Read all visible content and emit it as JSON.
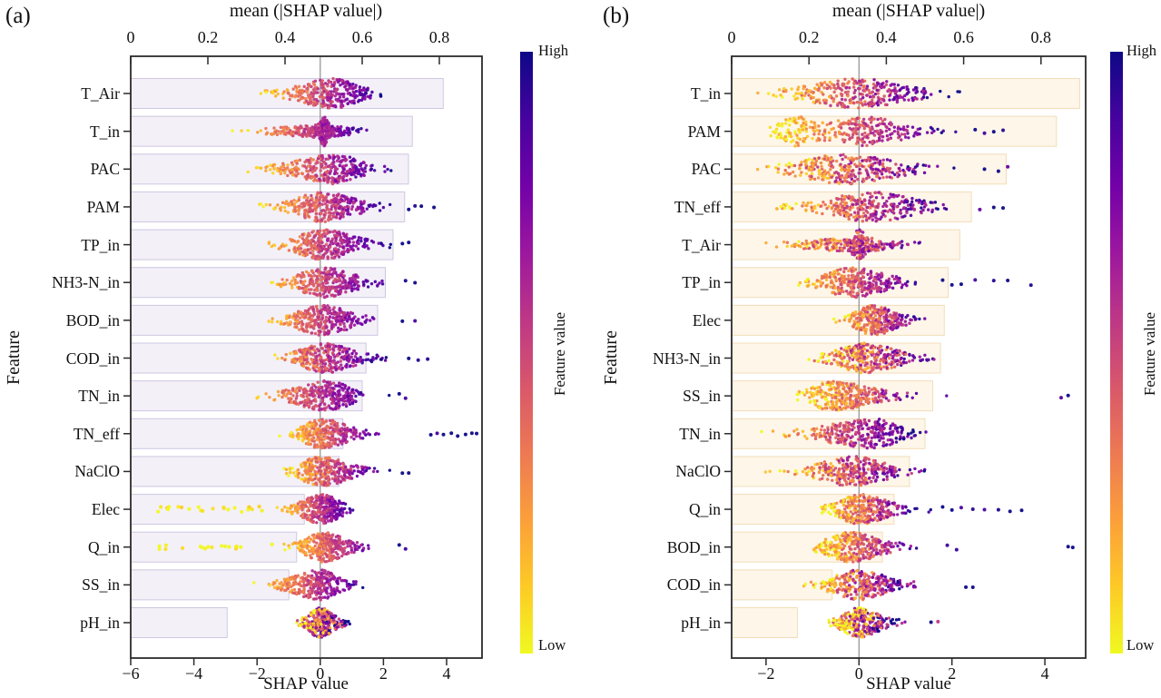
{
  "panels": [
    {
      "label": "(a)",
      "top_axis_title": "mean (|SHAP value|)",
      "bottom_axis_title": "SHAP value",
      "y_axis_title": "Feature",
      "colorbar": {
        "label": "Feature value",
        "high_label": "High",
        "low_label": "Low"
      }
    },
    {
      "label": "(b)",
      "top_axis_title": "mean (|SHAP value|)",
      "bottom_axis_title": "SHAP value",
      "y_axis_title": "Feature",
      "colorbar": {
        "label": "Feature value",
        "high_label": "High",
        "low_label": "Low"
      }
    }
  ],
  "colormap": {
    "name": "plasma",
    "high_color": "#0d0887",
    "low_color": "#f0f921",
    "stops": [
      "#0d0887",
      "#46039f",
      "#7201a8",
      "#9c179e",
      "#bd3786",
      "#d8576b",
      "#ed7953",
      "#fb9f3a",
      "#fdca26",
      "#f0f921"
    ]
  },
  "chart_data": [
    {
      "panel": "a",
      "type": "scatter",
      "subtype": "shap-summary-beeswarm-with-mean-abs-bars",
      "title": "mean (|SHAP value|)",
      "xlabel": "SHAP value",
      "ylabel": "Feature",
      "legend": {
        "colorbar_label": "Feature value",
        "high": "High",
        "low": "Low"
      },
      "top_axis": {
        "tick_values": [
          0,
          0.2,
          0.4,
          0.6,
          0.8
        ],
        "tick_labels": [
          "0",
          "0.2",
          "0.4",
          "0.6",
          "0.8"
        ],
        "range": [
          0,
          0.91
        ]
      },
      "bottom_axis": {
        "tick_values": [
          -6,
          -4,
          -2,
          0,
          2,
          4
        ],
        "tick_labels": [
          "−6",
          "−4",
          "−2",
          "0",
          "2",
          "4"
        ],
        "range": [
          -6.0,
          5.12
        ]
      },
      "bar_fill": "#f3f0f8",
      "bar_stroke": "#cfc7e2",
      "zero_line": 0,
      "n_points_per_feature": 300,
      "features": [
        {
          "name": "T_Air",
          "mean_abs_shap": 0.81,
          "swarm": {
            "min": -2.2,
            "max": 2.2,
            "mode": 0.4,
            "sl": 0.85,
            "sr": 0.65,
            "mix": 0.12
          }
        },
        {
          "name": "T_in",
          "mean_abs_shap": 0.73,
          "swarm": {
            "min": -2.9,
            "max": 1.9,
            "mode": 0.1,
            "sl": 0.9,
            "sr": 0.5,
            "mix": 0.1,
            "blob2": {
              "c": 0.12,
              "s": 0.09,
              "w": 0.22
            }
          }
        },
        {
          "name": "PAC",
          "mean_abs_shap": 0.72,
          "swarm": {
            "min": -2.5,
            "max": 2.4,
            "mode": 0.5,
            "sl": 1.0,
            "sr": 0.6,
            "mix": 0.15
          }
        },
        {
          "name": "PAM",
          "mean_abs_shap": 0.71,
          "swarm": {
            "min": -2.3,
            "max": 2.6,
            "mode": 0.05,
            "sl": 0.65,
            "sr": 0.85,
            "mix": 0.12
          },
          "outliers": [
            2.8,
            3.0,
            3.2,
            3.6
          ]
        },
        {
          "name": "TP_in",
          "mean_abs_shap": 0.68,
          "swarm": {
            "min": -2.3,
            "max": 2.4,
            "mode": 0.1,
            "sl": 0.7,
            "sr": 0.8,
            "mix": 0.12
          },
          "outliers": [
            2.6,
            2.8
          ]
        },
        {
          "name": "NH3-N_in",
          "mean_abs_shap": 0.66,
          "swarm": {
            "min": -2.2,
            "max": 2.4,
            "mode": 0.15,
            "sl": 0.7,
            "sr": 0.75,
            "mix": 0.12
          },
          "outliers": [
            2.7,
            3.0
          ]
        },
        {
          "name": "BOD_in",
          "mean_abs_shap": 0.64,
          "swarm": {
            "min": -2.2,
            "max": 2.3,
            "mode": 0.1,
            "sl": 0.7,
            "sr": 0.7,
            "mix": 0.12
          },
          "outliers": [
            2.6,
            3.0
          ]
        },
        {
          "name": "COD_in",
          "mean_abs_shap": 0.61,
          "swarm": {
            "min": -2.2,
            "max": 2.4,
            "mode": 0.15,
            "sl": 0.65,
            "sr": 0.7,
            "mix": 0.15
          },
          "outliers": [
            2.8,
            3.1,
            3.4
          ]
        },
        {
          "name": "TN_in",
          "mean_abs_shap": 0.6,
          "swarm": {
            "min": -2.7,
            "max": 2.2,
            "mode": 0.2,
            "sl": 0.8,
            "sr": 0.65,
            "mix": 0.12
          },
          "outliers": [
            2.5,
            2.7
          ]
        },
        {
          "name": "TN_eff",
          "mean_abs_shap": 0.55,
          "swarm": {
            "min": -1.3,
            "max": 2.3,
            "mode": 0.0,
            "sl": 0.45,
            "sr": 0.7,
            "mix": 0.12
          },
          "outliers": [
            3.5,
            3.7,
            3.9,
            4.15,
            4.35,
            4.6,
            4.8,
            4.95
          ]
        },
        {
          "name": "NaClO",
          "mean_abs_shap": 0.54,
          "swarm": {
            "min": -1.4,
            "max": 2.4,
            "mode": 0.0,
            "sl": 0.5,
            "sr": 0.7,
            "mix": 0.15
          },
          "outliers": [
            2.6,
            2.8
          ]
        },
        {
          "name": "Elec",
          "mean_abs_shap": 0.45,
          "swarm": {
            "min": -1.6,
            "max": 1.3,
            "mode": 0.05,
            "sl": 0.5,
            "sr": 0.45,
            "mix": 0.12
          },
          "tail": {
            "min": -5.6,
            "max": -1.8,
            "n": 26
          }
        },
        {
          "name": "Q_in",
          "mean_abs_shap": 0.43,
          "swarm": {
            "min": -1.3,
            "max": 2.3,
            "mode": 0.1,
            "sl": 0.45,
            "sr": 0.55,
            "mix": 0.12
          },
          "tail": {
            "min": -5.1,
            "max": -1.4,
            "n": 18
          },
          "outliers": [
            2.5,
            2.7
          ]
        },
        {
          "name": "SS_in",
          "mean_abs_shap": 0.41,
          "swarm": {
            "min": -2.2,
            "max": 1.7,
            "mode": 0.0,
            "sl": 0.7,
            "sr": 0.45,
            "mix": 0.12
          }
        },
        {
          "name": "pH_in",
          "mean_abs_shap": 0.25,
          "swarm": {
            "min": -1.0,
            "max": 1.2,
            "mode": 0.0,
            "sl": 0.3,
            "sr": 0.35,
            "mix": 0.45
          }
        }
      ]
    },
    {
      "panel": "b",
      "type": "scatter",
      "subtype": "shap-summary-beeswarm-with-mean-abs-bars",
      "title": "mean (|SHAP value|)",
      "xlabel": "SHAP value",
      "ylabel": "Feature",
      "legend": {
        "colorbar_label": "Feature value",
        "high": "High",
        "low": "Low"
      },
      "top_axis": {
        "tick_values": [
          0,
          0.2,
          0.4,
          0.6,
          0.8
        ],
        "tick_labels": [
          "0",
          "0.2",
          "0.4",
          "0.6",
          "0.8"
        ],
        "range": [
          0,
          0.92
        ]
      },
      "bottom_axis": {
        "tick_values": [
          -2,
          0,
          2,
          4
        ],
        "tick_labels": [
          "−2",
          "0",
          "2",
          "4"
        ],
        "range": [
          -2.74,
          4.88
        ]
      },
      "bar_fill": "#fdf6e9",
      "bar_stroke": "#f3ddb9",
      "zero_line": 0,
      "n_points_per_feature": 300,
      "features": [
        {
          "name": "T_in",
          "mean_abs_shap": 0.9,
          "swarm": {
            "min": -2.4,
            "max": 2.35,
            "mode": 0.0,
            "sl": 0.9,
            "sr": 0.8,
            "mix": 0.2
          }
        },
        {
          "name": "PAM",
          "mean_abs_shap": 0.84,
          "swarm": {
            "min": -1.95,
            "max": 2.3,
            "mode": 0.1,
            "sl": 0.65,
            "sr": 0.7,
            "mix": 0.15,
            "blob2": {
              "c": -1.35,
              "s": 0.3,
              "w": 0.3
            }
          },
          "outliers": [
            2.5,
            2.7,
            2.9,
            3.1
          ]
        },
        {
          "name": "PAC",
          "mean_abs_shap": 0.71,
          "swarm": {
            "min": -2.4,
            "max": 2.4,
            "mode": -0.3,
            "sl": 0.75,
            "sr": 0.85,
            "mix": 0.25
          },
          "outliers": [
            2.7,
            3.0,
            3.2
          ]
        },
        {
          "name": "TN_eff",
          "mean_abs_shap": 0.62,
          "swarm": {
            "min": -2.05,
            "max": 2.3,
            "mode": 0.3,
            "sl": 0.75,
            "sr": 0.7,
            "mix": 0.2
          },
          "outliers": [
            2.6,
            2.9,
            3.1
          ]
        },
        {
          "name": "T_Air",
          "mean_abs_shap": 0.59,
          "swarm": {
            "min": -2.5,
            "max": 2.5,
            "mode": 0.0,
            "sl": 0.8,
            "sr": 0.55,
            "mix": 0.25,
            "blob2": {
              "c": 0.0,
              "s": 0.1,
              "w": 0.22
            }
          }
        },
        {
          "name": "TP_in",
          "mean_abs_shap": 0.56,
          "swarm": {
            "min": -1.5,
            "max": 1.6,
            "mode": -0.15,
            "sl": 0.45,
            "sr": 0.6,
            "mix": 0.15
          },
          "outliers": [
            1.8,
            2.0,
            2.2,
            2.5,
            2.9,
            3.2,
            3.7
          ]
        },
        {
          "name": "Elec",
          "mean_abs_shap": 0.55,
          "swarm": {
            "min": -0.55,
            "max": 1.6,
            "mode": 0.3,
            "sl": 0.3,
            "sr": 0.4,
            "mix": 0.2
          }
        },
        {
          "name": "NH3-N_in",
          "mean_abs_shap": 0.54,
          "swarm": {
            "min": -1.4,
            "max": 2.4,
            "mode": 0.15,
            "sl": 0.5,
            "sr": 0.55,
            "mix": 0.3
          }
        },
        {
          "name": "SS_in",
          "mean_abs_shap": 0.52,
          "swarm": {
            "min": -1.35,
            "max": 1.9,
            "mode": -0.6,
            "sl": 0.35,
            "sr": 0.7,
            "mix": 0.2
          },
          "outliers": [
            4.35,
            4.5
          ]
        },
        {
          "name": "TN_in",
          "mean_abs_shap": 0.5,
          "swarm": {
            "min": -2.25,
            "max": 1.5,
            "mode": 0.35,
            "sl": 0.85,
            "sr": 0.4,
            "mix": 0.15
          }
        },
        {
          "name": "NaClO",
          "mean_abs_shap": 0.46,
          "swarm": {
            "min": -2.25,
            "max": 2.2,
            "mode": -0.1,
            "sl": 0.6,
            "sr": 0.55,
            "mix": 0.25
          }
        },
        {
          "name": "Q_in",
          "mean_abs_shap": 0.42,
          "swarm": {
            "min": -0.9,
            "max": 1.6,
            "mode": 0.0,
            "sl": 0.35,
            "sr": 0.5,
            "mix": 0.2
          },
          "outliers": [
            1.8,
            2.0,
            2.2,
            2.45,
            2.7,
            3.0,
            3.25,
            3.5
          ]
        },
        {
          "name": "BOD_in",
          "mean_abs_shap": 0.39,
          "swarm": {
            "min": -1.05,
            "max": 1.7,
            "mode": -0.2,
            "sl": 0.4,
            "sr": 0.55,
            "mix": 0.2
          },
          "outliers": [
            1.9,
            2.1,
            4.5,
            4.6
          ]
        },
        {
          "name": "COD_in",
          "mean_abs_shap": 0.26,
          "swarm": {
            "min": -1.4,
            "max": 1.8,
            "mode": 0.0,
            "sl": 0.45,
            "sr": 0.5,
            "mix": 0.3
          },
          "outliers": [
            2.3,
            2.45
          ]
        },
        {
          "name": "pH_in",
          "mean_abs_shap": 0.17,
          "swarm": {
            "min": -0.65,
            "max": 1.2,
            "mode": 0.0,
            "sl": 0.28,
            "sr": 0.35,
            "mix": 0.45
          },
          "outliers": [
            1.55,
            1.7
          ]
        }
      ]
    }
  ]
}
